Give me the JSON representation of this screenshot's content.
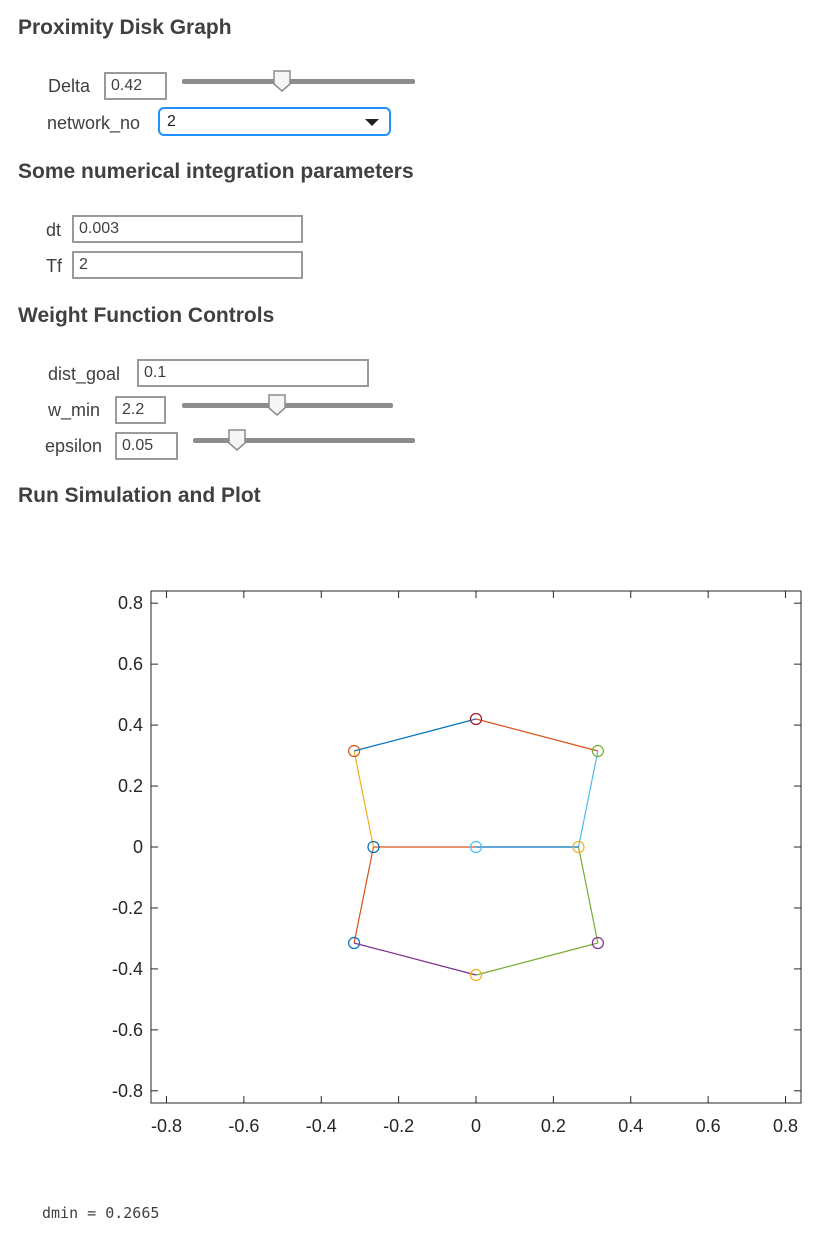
{
  "section1": {
    "heading": "Proximity Disk Graph",
    "delta": {
      "label": "Delta",
      "value": "0.42",
      "slider_fraction": 0.43
    },
    "network": {
      "label": "network_no",
      "selected": "2"
    }
  },
  "section2": {
    "heading": "Some numerical integration parameters",
    "dt": {
      "label": "dt",
      "value": "0.003"
    },
    "tf": {
      "label": "Tf",
      "value": "2"
    }
  },
  "section3": {
    "heading": "Weight Function Controls",
    "dist_goal": {
      "label": "dist_goal",
      "value": "0.1"
    },
    "w_min": {
      "label": "w_min",
      "value": "2.2",
      "slider_fraction": 0.45
    },
    "epsilon": {
      "label": "epsilon",
      "value": "0.05",
      "slider_fraction": 0.2
    }
  },
  "section4": {
    "heading": "Run Simulation and Plot"
  },
  "chart_data": {
    "type": "scatter",
    "xlim": [
      -0.84,
      0.84
    ],
    "ylim": [
      -0.84,
      0.84
    ],
    "xticks": [
      "-0.8",
      "-0.6",
      "-0.4",
      "-0.2",
      "0",
      "0.2",
      "0.4",
      "0.6",
      "0.8"
    ],
    "yticks": [
      "0.8",
      "0.6",
      "0.4",
      "0.2",
      "0",
      "-0.2",
      "-0.4",
      "-0.6",
      "-0.8"
    ],
    "grid": false,
    "nodes": [
      {
        "x": 0.0,
        "y": 0.42,
        "color": "#A2142F"
      },
      {
        "x": -0.315,
        "y": 0.315,
        "color": "#D95319"
      },
      {
        "x": 0.315,
        "y": 0.315,
        "color": "#77AC30"
      },
      {
        "x": -0.265,
        "y": 0.0,
        "color": "#0072BD"
      },
      {
        "x": 0.0,
        "y": 0.0,
        "color": "#4DBEEE"
      },
      {
        "x": 0.265,
        "y": 0.0,
        "color": "#EDB120"
      },
      {
        "x": -0.315,
        "y": -0.315,
        "color": "#0072BD"
      },
      {
        "x": 0.315,
        "y": -0.315,
        "color": "#7E2F8E"
      },
      {
        "x": 0.0,
        "y": -0.42,
        "color": "#EDB120"
      }
    ],
    "edges": [
      {
        "from": [
          -0.315,
          0.315
        ],
        "to": [
          0.0,
          0.42
        ],
        "color": "#0072BD"
      },
      {
        "from": [
          0.0,
          0.42
        ],
        "to": [
          0.315,
          0.315
        ],
        "color": "#D95319"
      },
      {
        "from": [
          -0.315,
          0.315
        ],
        "to": [
          -0.265,
          0.0
        ],
        "color": "#EDB120"
      },
      {
        "from": [
          0.315,
          0.315
        ],
        "to": [
          0.265,
          0.0
        ],
        "color": "#4DBEEE"
      },
      {
        "from": [
          -0.265,
          0.0
        ],
        "to": [
          0.0,
          0.0
        ],
        "color": "#D95319"
      },
      {
        "from": [
          0.0,
          0.0
        ],
        "to": [
          0.265,
          0.0
        ],
        "color": "#0072BD"
      },
      {
        "from": [
          -0.265,
          0.0
        ],
        "to": [
          -0.315,
          -0.315
        ],
        "color": "#D95319"
      },
      {
        "from": [
          0.265,
          0.0
        ],
        "to": [
          0.315,
          -0.315
        ],
        "color": "#77AC30"
      },
      {
        "from": [
          -0.315,
          -0.315
        ],
        "to": [
          0.0,
          -0.42
        ],
        "color": "#7E2F8E"
      },
      {
        "from": [
          0.0,
          -0.42
        ],
        "to": [
          0.315,
          -0.315
        ],
        "color": "#77AC30"
      }
    ]
  },
  "console": {
    "output": "dmin = 0.2665"
  }
}
